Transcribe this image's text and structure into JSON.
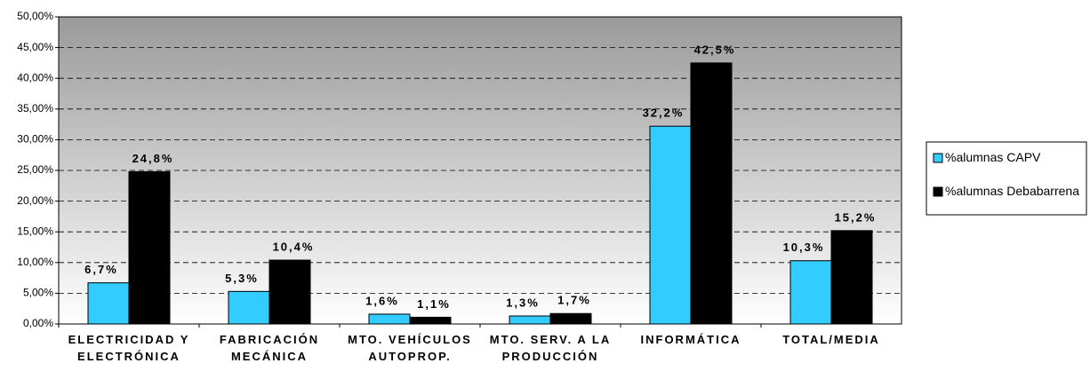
{
  "chart_data": {
    "type": "bar",
    "categories": [
      "ELECTRICIDAD Y ELECTRÓNICA",
      "FABRICACIÓN MECÁNICA",
      "MTO. VEHÍCULOS AUTOPROP.",
      "MTO. SERV. A LA PRODUCCIÓN",
      "INFORMÁTICA",
      "TOTAL/MEDIA"
    ],
    "series": [
      {
        "name": "%alumnas CAPV",
        "color": "#33ccff",
        "values": [
          6.7,
          5.3,
          1.6,
          1.3,
          32.2,
          10.3
        ],
        "value_labels": [
          "6,7%",
          "5,3%",
          "1,6%",
          "1,3%",
          "32,2%",
          "10,3%"
        ]
      },
      {
        "name": "%alumnas Debabarrena",
        "color": "#000000",
        "values": [
          24.8,
          10.4,
          1.1,
          1.7,
          42.5,
          15.2
        ],
        "value_labels": [
          "24,8%",
          "10,4%",
          "1,1%",
          "1,7%",
          "42,5%",
          "15,2%"
        ]
      }
    ],
    "ylim": [
      0,
      50
    ],
    "yticks": [
      {
        "value": 0,
        "label": "0,00%"
      },
      {
        "value": 5,
        "label": "5,00%"
      },
      {
        "value": 10,
        "label": "10,00%"
      },
      {
        "value": 15,
        "label": "15,00%"
      },
      {
        "value": 20,
        "label": "20,00%"
      },
      {
        "value": 25,
        "label": "25,00%"
      },
      {
        "value": 30,
        "label": "30,00%"
      },
      {
        "value": 35,
        "label": "35,00%"
      },
      {
        "value": 40,
        "label": "40,00%"
      },
      {
        "value": 45,
        "label": "45,00%"
      },
      {
        "value": 50,
        "label": "50,00%"
      }
    ],
    "grid": true
  }
}
